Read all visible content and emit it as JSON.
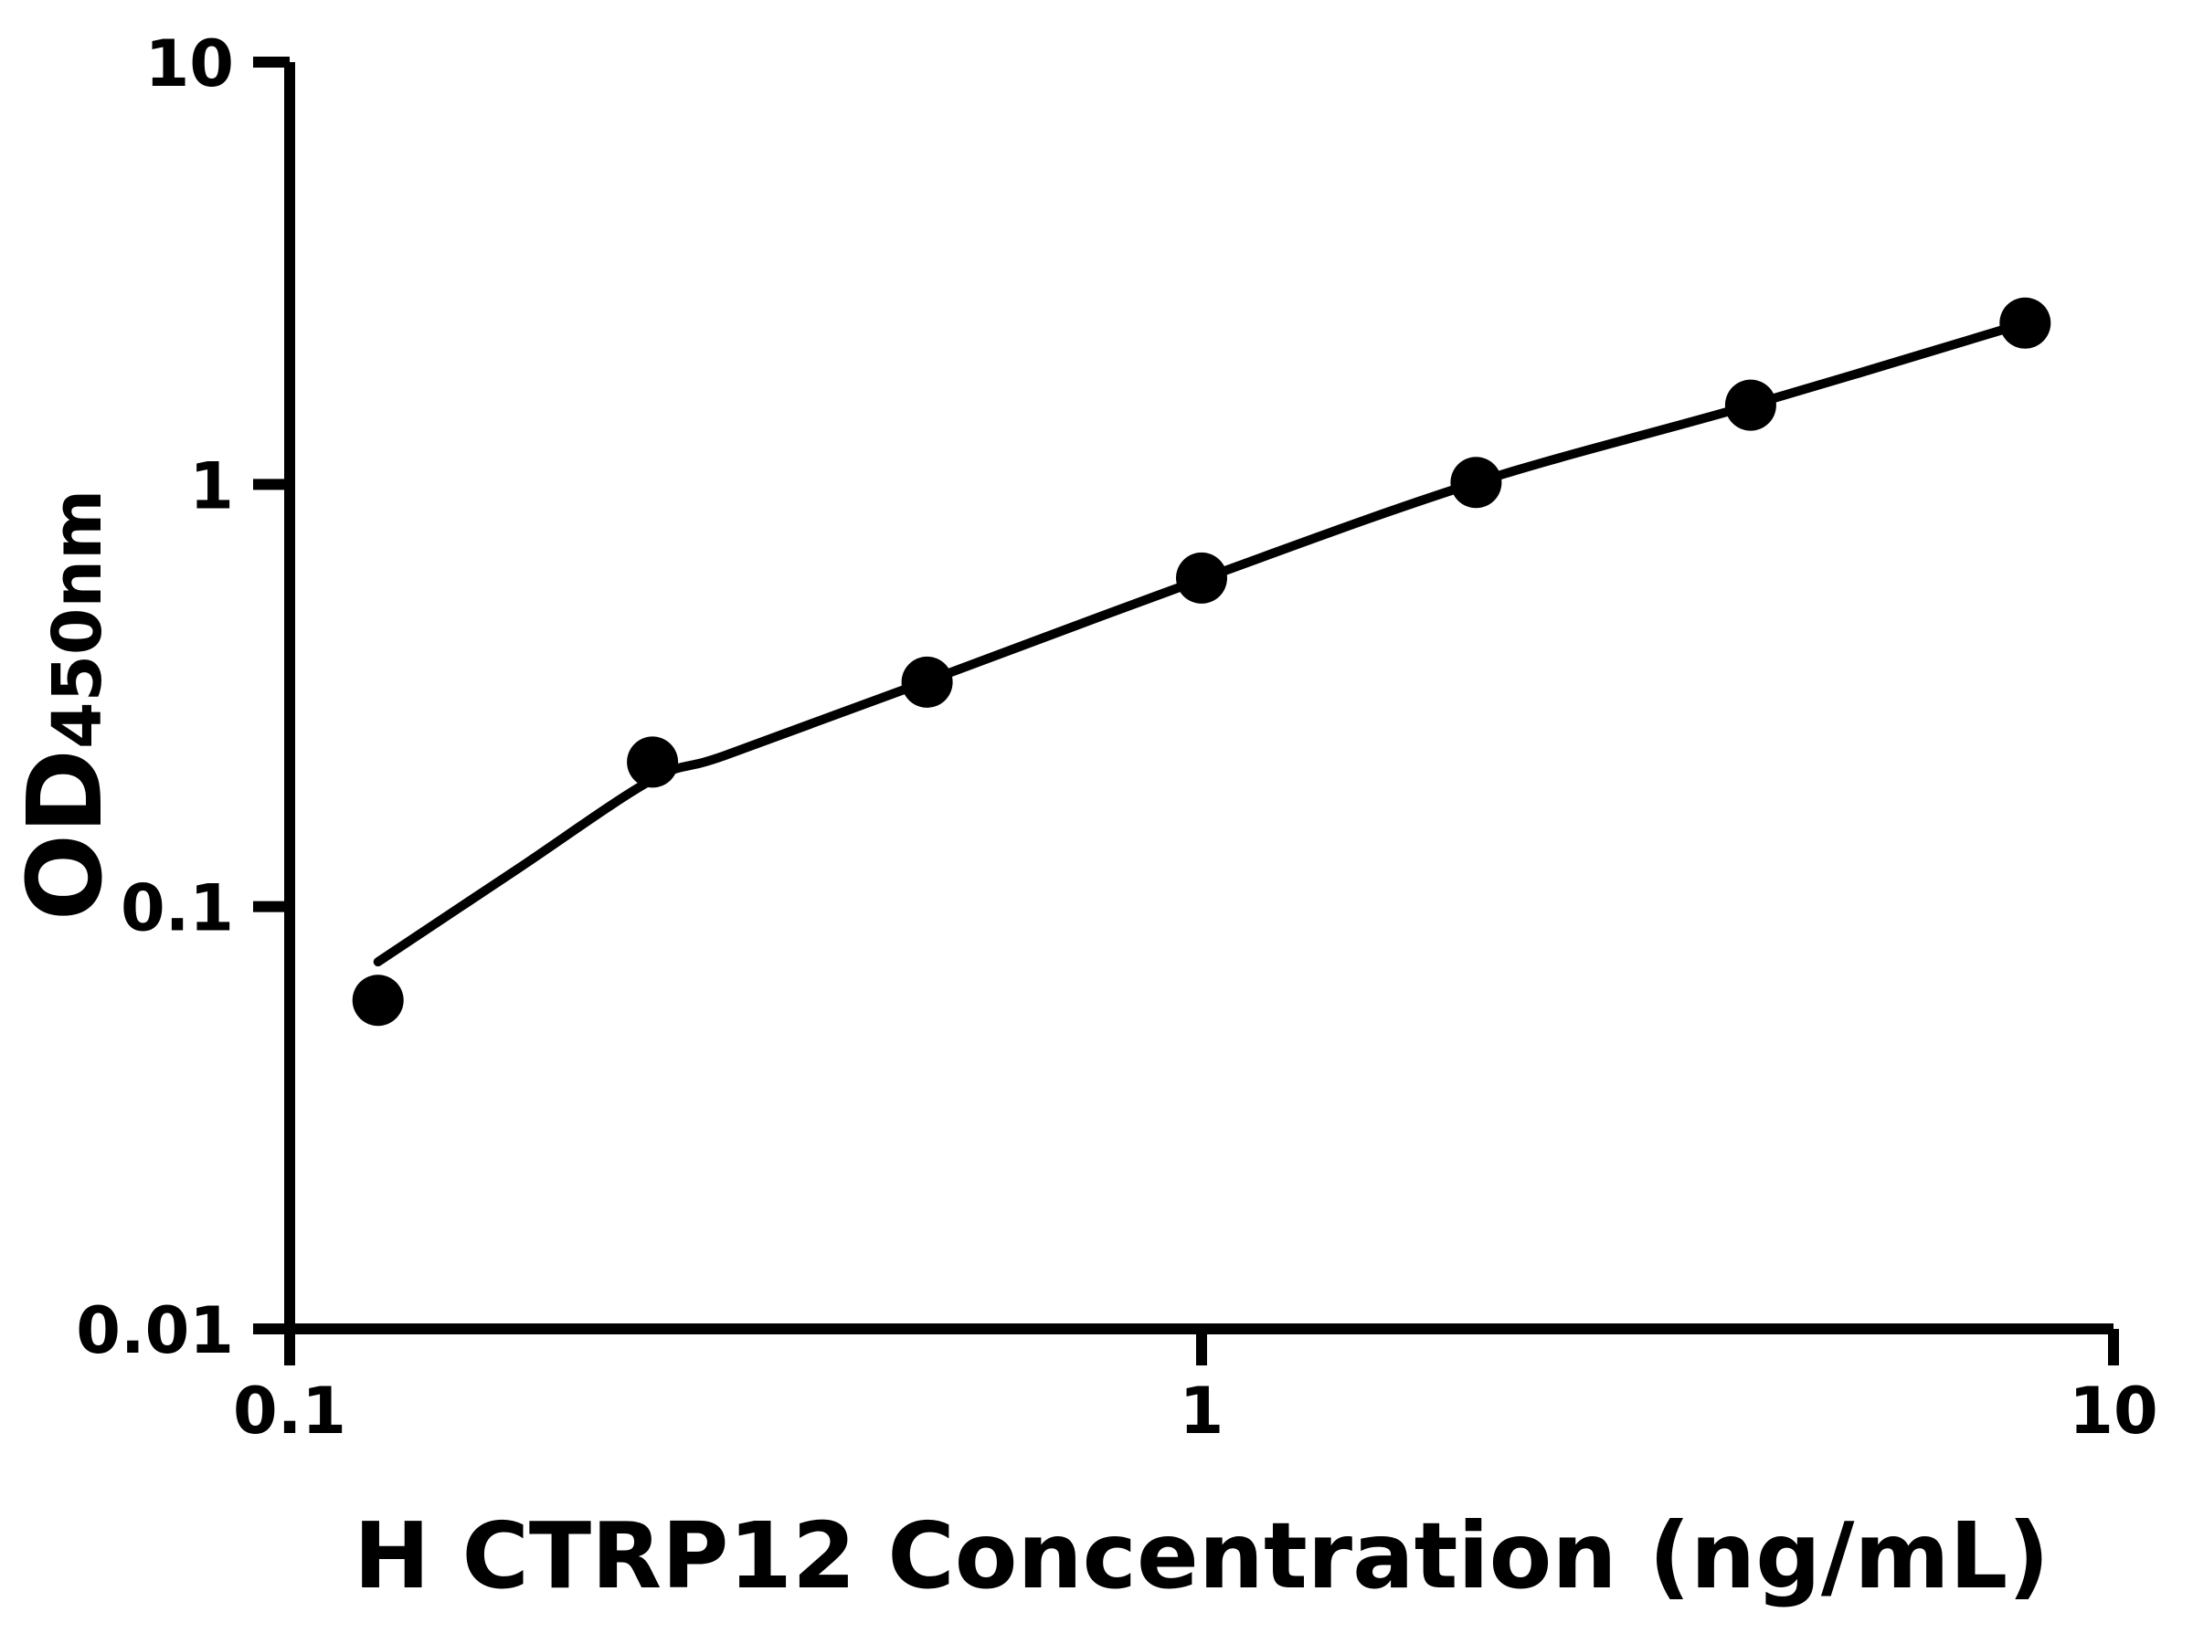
{
  "figure": {
    "background_color": "#ffffff",
    "ink_color": "#000000"
  },
  "chart_data": {
    "type": "scatter",
    "title": "",
    "xlabel": "H CTRP12 Concentration (ng/mL)",
    "ylabel_main": "OD",
    "ylabel_subscript": "450nm",
    "x_scale": "log10",
    "y_scale": "log10",
    "xlim": [
      0.1,
      10
    ],
    "ylim": [
      0.01,
      10
    ],
    "grid": false,
    "legend": "none",
    "x_ticks": [
      {
        "value": 0.1,
        "label": "0.1"
      },
      {
        "value": 1,
        "label": "1"
      },
      {
        "value": 10,
        "label": "10"
      }
    ],
    "y_ticks": [
      {
        "value": 10,
        "label": "10"
      },
      {
        "value": 1,
        "label": "1"
      },
      {
        "value": 0.1,
        "label": "0.1"
      },
      {
        "value": 0.01,
        "label": "0.01"
      }
    ],
    "series": [
      {
        "name": "standard-data-points",
        "marker": "filled-circle",
        "color": "#000000",
        "points": [
          {
            "x": 0.125,
            "y": 0.06
          },
          {
            "x": 0.25,
            "y": 0.22
          },
          {
            "x": 0.5,
            "y": 0.34
          },
          {
            "x": 1,
            "y": 0.6
          },
          {
            "x": 2,
            "y": 1.01
          },
          {
            "x": 4,
            "y": 1.54
          },
          {
            "x": 8,
            "y": 2.41
          }
        ]
      }
    ],
    "fit_curve": {
      "name": "fitted-standard-curve",
      "color": "#000000",
      "samples": [
        {
          "x": 0.125,
          "y": 0.074
        },
        {
          "x": 0.178,
          "y": 0.123
        },
        {
          "x": 0.25,
          "y": 0.2
        },
        {
          "x": 0.3,
          "y": 0.228
        },
        {
          "x": 0.5,
          "y": 0.342
        },
        {
          "x": 1,
          "y": 0.596
        },
        {
          "x": 2,
          "y": 1.01
        },
        {
          "x": 4,
          "y": 1.54
        },
        {
          "x": 8,
          "y": 2.41
        }
      ]
    }
  }
}
